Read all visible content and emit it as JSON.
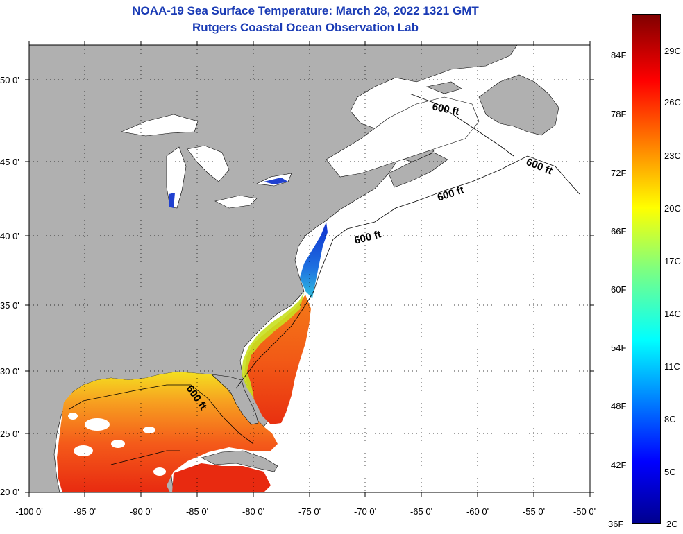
{
  "header": {
    "title_line1": "NOAA-19 Sea Surface Temperature:  March 28, 2022 1321 GMT",
    "title_line2": "Rutgers Coastal Ocean Observation Lab"
  },
  "map": {
    "lon_ticks": [
      "-100 0'",
      "-95 0'",
      "-90 0'",
      "-85 0'",
      "-80 0'",
      "-75 0'",
      "-70 0'",
      "-65 0'",
      "-60 0'",
      "-55 0'",
      "-50 0'"
    ],
    "lat_ticks": [
      "20 0'",
      "25 0'",
      "30 0'",
      "35 0'",
      "40 0'",
      "45 0'",
      "50 0'"
    ],
    "contour_labels": [
      "600 ft",
      "600 ft",
      "600 ft",
      "600 ft",
      "600 ft"
    ],
    "colors": {
      "land": "#b0b0b0",
      "ocean_nodata": "#ffffff",
      "title": "#1a3bb5"
    }
  },
  "colorbar": {
    "fahrenheit_labels": [
      "84F",
      "78F",
      "72F",
      "66F",
      "60F",
      "54F",
      "48F",
      "42F",
      "36F"
    ],
    "celsius_labels": [
      "29C",
      "26C",
      "23C",
      "20C",
      "17C",
      "14C",
      "11C",
      "8C",
      "5C",
      "2C"
    ]
  }
}
